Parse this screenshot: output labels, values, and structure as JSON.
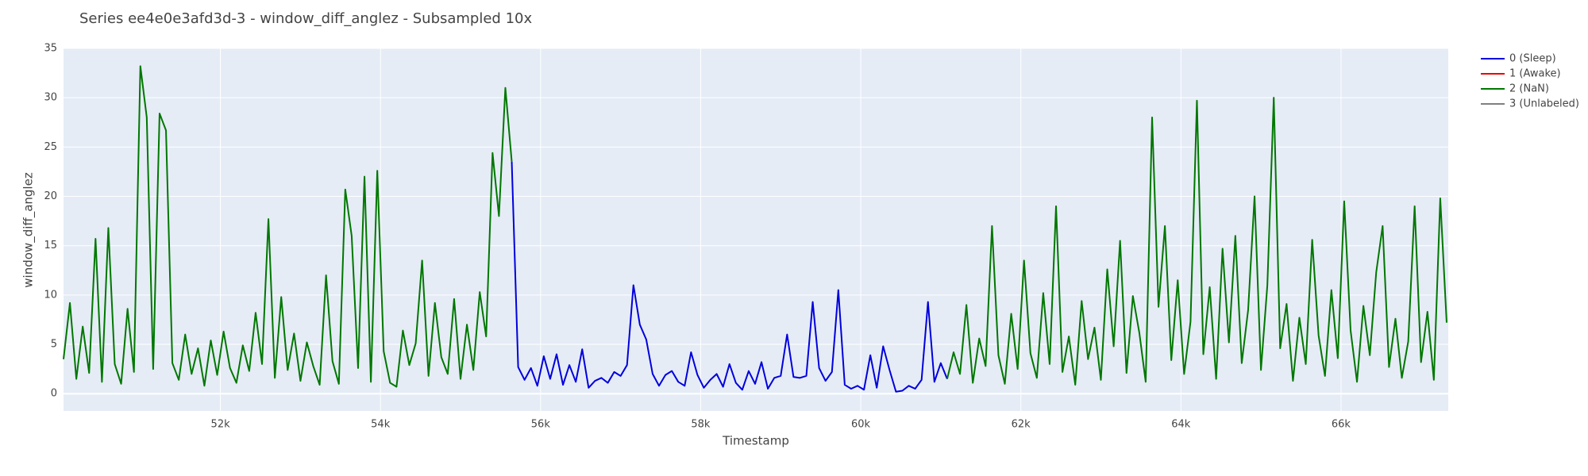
{
  "chart_data": {
    "type": "line",
    "title": "Series ee4e0e3afd3d-3 - window_diff_anglez - Subsampled 10x",
    "x_label": "Timestamp",
    "y_label": "window_diff_anglez",
    "xlim": [
      50040,
      67340
    ],
    "ylim": [
      -1.75,
      35
    ],
    "xticks": [
      {
        "value": 52000,
        "label": "52k"
      },
      {
        "value": 54000,
        "label": "54k"
      },
      {
        "value": 56000,
        "label": "56k"
      },
      {
        "value": 58000,
        "label": "58k"
      },
      {
        "value": 60000,
        "label": "60k"
      },
      {
        "value": 62000,
        "label": "62k"
      },
      {
        "value": 64000,
        "label": "64k"
      },
      {
        "value": 66000,
        "label": "66k"
      }
    ],
    "yticks": [
      0,
      5,
      10,
      15,
      20,
      25,
      30,
      35
    ],
    "grid": true,
    "legend": "right",
    "x": [
      50040,
      50120,
      50200,
      50280,
      50360,
      50440,
      50520,
      50600,
      50680,
      50760,
      50840,
      50920,
      51000,
      51080,
      51160,
      51240,
      51320,
      51400,
      51480,
      51560,
      51640,
      51720,
      51800,
      51880,
      51960,
      52040,
      52120,
      52200,
      52280,
      52360,
      52440,
      52520,
      52600,
      52680,
      52760,
      52840,
      52920,
      53000,
      53080,
      53160,
      53240,
      53320,
      53400,
      53480,
      53560,
      53640,
      53720,
      53800,
      53880,
      53960,
      54040,
      54120,
      54200,
      54280,
      54360,
      54440,
      54520,
      54600,
      54680,
      54760,
      54840,
      54920,
      55000,
      55080,
      55160,
      55240,
      55320,
      55400,
      55480,
      55560,
      55640,
      55720,
      55800,
      55880,
      55960,
      56040,
      56120,
      56200,
      56280,
      56360,
      56440,
      56520,
      56600,
      56680,
      56760,
      56840,
      56920,
      57000,
      57080,
      57160,
      57240,
      57320,
      57400,
      57480,
      57560,
      57640,
      57720,
      57800,
      57880,
      57960,
      58040,
      58120,
      58200,
      58280,
      58360,
      58440,
      58520,
      58600,
      58680,
      58760,
      58840,
      58920,
      59000,
      59080,
      59160,
      59240,
      59320,
      59400,
      59480,
      59560,
      59640,
      59720,
      59800,
      59880,
      59960,
      60040,
      60120,
      60200,
      60280,
      60360,
      60440,
      60520,
      60600,
      60680,
      60760,
      60840,
      60920,
      61000,
      61080,
      61160,
      61240,
      61320,
      61400,
      61480,
      61560,
      61640,
      61720,
      61800,
      61880,
      61960,
      62040,
      62120,
      62200,
      62280,
      62360,
      62440,
      62520,
      62600,
      62680,
      62760,
      62840,
      62920,
      63000,
      63080,
      63160,
      63240,
      63320,
      63400,
      63480,
      63560,
      63640,
      63720,
      63800,
      63880,
      63960,
      64040,
      64120,
      64200,
      64280,
      64360,
      64440,
      64520,
      64600,
      64680,
      64760,
      64840,
      64920,
      65000,
      65080,
      65160,
      65240,
      65320,
      65400,
      65480,
      65560,
      65640,
      65720,
      65800,
      65880,
      65960,
      66040,
      66120,
      66200,
      66280,
      66360,
      66440,
      66520,
      66600,
      66680,
      66760,
      66840,
      66920,
      67000,
      67080,
      67160,
      67240,
      67320
    ],
    "series": [
      {
        "name": "0 (Sleep)",
        "color": "#0000dd",
        "values": [
          null,
          null,
          null,
          null,
          null,
          null,
          null,
          null,
          null,
          null,
          null,
          null,
          null,
          null,
          null,
          null,
          null,
          null,
          null,
          null,
          null,
          null,
          null,
          null,
          null,
          null,
          null,
          null,
          null,
          null,
          null,
          null,
          null,
          null,
          null,
          null,
          null,
          null,
          null,
          null,
          null,
          null,
          null,
          null,
          null,
          null,
          null,
          null,
          null,
          null,
          null,
          null,
          null,
          null,
          null,
          null,
          null,
          null,
          null,
          null,
          null,
          null,
          null,
          null,
          null,
          null,
          null,
          null,
          null,
          null,
          23.5,
          2.7,
          1.4,
          2.6,
          0.8,
          3.8,
          1.5,
          4.0,
          0.9,
          2.9,
          1.2,
          4.5,
          0.6,
          1.3,
          1.6,
          1.1,
          2.2,
          1.8,
          2.9,
          11.0,
          7.0,
          5.5,
          2.0,
          0.8,
          1.9,
          2.3,
          1.2,
          0.8,
          4.2,
          1.9,
          0.6,
          1.4,
          2.0,
          0.7,
          3.0,
          1.1,
          0.4,
          2.3,
          1.0,
          3.2,
          0.5,
          1.6,
          1.8,
          6.0,
          1.7,
          1.6,
          1.8,
          9.3,
          2.6,
          1.3,
          2.2,
          10.5,
          0.9,
          0.5,
          0.8,
          0.4,
          3.9,
          0.6,
          4.8,
          2.4,
          0.2,
          0.3,
          0.8,
          0.5,
          1.4,
          9.3,
          1.2,
          3.1,
          1.5,
          null,
          null,
          null,
          null,
          null,
          null,
          null,
          null,
          null,
          null,
          null,
          null,
          null,
          null,
          null,
          null,
          null,
          null,
          null,
          null,
          null,
          null,
          null,
          null,
          null,
          null,
          null,
          null,
          null,
          null,
          null,
          null,
          null,
          null,
          null,
          null,
          null,
          null,
          null,
          null,
          null,
          null,
          null,
          null,
          null,
          null,
          null,
          null,
          null,
          null,
          null,
          null,
          null,
          null,
          null,
          null,
          null,
          null,
          null,
          null,
          null,
          null,
          null,
          null,
          null,
          null,
          null,
          null,
          null,
          null,
          null,
          null,
          null,
          null,
          null,
          null,
          null,
          null
        ]
      },
      {
        "name": "1 (Awake)",
        "color": "#ee0000",
        "values": [
          null,
          null,
          null,
          null,
          null,
          null,
          null,
          null,
          null,
          null,
          null,
          null,
          null,
          null,
          null,
          null,
          null,
          null,
          null,
          null,
          null,
          null,
          null,
          null,
          null,
          null,
          null,
          null,
          null,
          null,
          null,
          null,
          null,
          null,
          null,
          null,
          null,
          null,
          null,
          null,
          null,
          null,
          null,
          null,
          null,
          null,
          null,
          null,
          null,
          null,
          null,
          null,
          null,
          null,
          null,
          null,
          null,
          null,
          null,
          null,
          null,
          null,
          null,
          null,
          null,
          null,
          null,
          null,
          null,
          null,
          null,
          null,
          null,
          null,
          null,
          null,
          null,
          null,
          null,
          null,
          null,
          null,
          null,
          null,
          null,
          null,
          null,
          null,
          null,
          null,
          null,
          null,
          null,
          null,
          null,
          null,
          null,
          null,
          null,
          null,
          null,
          null,
          null,
          null,
          null,
          null,
          null,
          null,
          null,
          null,
          null,
          null,
          null,
          null,
          null,
          null,
          null,
          null,
          null,
          null,
          null,
          null,
          null,
          null,
          null,
          null,
          null,
          null,
          null,
          null,
          null,
          null,
          null,
          null,
          null,
          null,
          null,
          null,
          null,
          null,
          null,
          null,
          null,
          null,
          null,
          null,
          null,
          null,
          null,
          null,
          null,
          null,
          null,
          null,
          null,
          null,
          null,
          null,
          null,
          null,
          null,
          null,
          null,
          null,
          null,
          null,
          null,
          null,
          null,
          null,
          null,
          null,
          null,
          null,
          null,
          null,
          null,
          null,
          null,
          null,
          null,
          null,
          null,
          null,
          null,
          null,
          null,
          null,
          null,
          null,
          null,
          null,
          null,
          null,
          null,
          null,
          null,
          null,
          null,
          null,
          null,
          null,
          null,
          null,
          null,
          null,
          null,
          null,
          null,
          null,
          null,
          null,
          null,
          null,
          null,
          null,
          null
        ]
      },
      {
        "name": "2 (NaN)",
        "color": "#007700",
        "values": [
          3.5,
          9.2,
          1.5,
          6.8,
          2.1,
          15.7,
          1.2,
          16.8,
          3.0,
          1.0,
          8.6,
          2.2,
          33.2,
          28.0,
          2.5,
          28.4,
          26.7,
          3.1,
          1.4,
          6.0,
          2.0,
          4.6,
          0.8,
          5.4,
          1.9,
          6.3,
          2.6,
          1.1,
          4.9,
          2.3,
          8.2,
          3.0,
          17.7,
          1.6,
          9.8,
          2.4,
          6.1,
          1.3,
          5.2,
          2.8,
          0.9,
          12.0,
          3.3,
          1.0,
          20.7,
          16.0,
          2.6,
          22.0,
          1.2,
          22.6,
          4.3,
          1.1,
          0.7,
          6.4,
          2.9,
          5.1,
          13.5,
          1.8,
          9.2,
          3.7,
          2.0,
          9.6,
          1.5,
          7.0,
          2.4,
          10.3,
          5.8,
          24.4,
          18.0,
          31.0,
          23.5,
          null,
          null,
          null,
          null,
          null,
          null,
          null,
          null,
          null,
          null,
          null,
          null,
          null,
          null,
          null,
          null,
          null,
          null,
          null,
          null,
          null,
          null,
          null,
          null,
          null,
          null,
          null,
          null,
          null,
          null,
          null,
          null,
          null,
          null,
          null,
          null,
          null,
          null,
          null,
          null,
          null,
          null,
          null,
          null,
          null,
          null,
          null,
          null,
          null,
          null,
          null,
          null,
          null,
          null,
          null,
          null,
          null,
          null,
          null,
          null,
          null,
          null,
          null,
          null,
          null,
          null,
          null,
          1.5,
          4.2,
          2.0,
          9.0,
          1.1,
          5.6,
          2.8,
          17.0,
          3.9,
          1.0,
          8.1,
          2.5,
          13.5,
          4.1,
          1.6,
          10.2,
          3.0,
          19.0,
          2.2,
          5.8,
          0.9,
          9.4,
          3.5,
          6.7,
          1.4,
          12.6,
          4.8,
          15.5,
          2.1,
          9.9,
          6.2,
          1.2,
          28.0,
          8.8,
          17.0,
          3.4,
          11.5,
          2.0,
          7.3,
          29.7,
          4.0,
          10.8,
          1.5,
          14.7,
          5.2,
          16.0,
          3.1,
          8.5,
          20.0,
          2.4,
          11.0,
          30.0,
          4.6,
          9.1,
          1.3,
          7.7,
          3.0,
          15.6,
          5.9,
          1.8,
          10.5,
          3.6,
          19.5,
          6.4,
          1.2,
          8.9,
          3.9,
          12.3,
          17.0,
          2.7,
          7.6,
          1.6,
          5.3,
          19.0,
          3.2,
          8.3,
          1.4,
          19.8,
          7.2
        ]
      },
      {
        "name": "3 (Unlabeled)",
        "color": "#808080",
        "values": [
          null,
          null,
          null,
          null,
          null,
          null,
          null,
          null,
          null,
          null,
          null,
          null,
          null,
          null,
          null,
          null,
          null,
          null,
          null,
          null,
          null,
          null,
          null,
          null,
          null,
          null,
          null,
          null,
          null,
          null,
          null,
          null,
          null,
          null,
          null,
          null,
          null,
          null,
          null,
          null,
          null,
          null,
          null,
          null,
          null,
          null,
          null,
          null,
          null,
          null,
          null,
          null,
          null,
          null,
          null,
          null,
          null,
          null,
          null,
          null,
          null,
          null,
          null,
          null,
          null,
          null,
          null,
          null,
          null,
          null,
          null,
          null,
          null,
          null,
          null,
          null,
          null,
          null,
          null,
          null,
          null,
          null,
          null,
          null,
          null,
          null,
          null,
          null,
          null,
          null,
          null,
          null,
          null,
          null,
          null,
          null,
          null,
          null,
          null,
          null,
          null,
          null,
          null,
          null,
          null,
          null,
          null,
          null,
          null,
          null,
          null,
          null,
          null,
          null,
          null,
          null,
          null,
          null,
          null,
          null,
          null,
          null,
          null,
          null,
          null,
          null,
          null,
          null,
          null,
          null,
          null,
          null,
          null,
          null,
          null,
          null,
          null,
          null,
          null,
          null,
          null,
          null,
          null,
          null,
          null,
          null,
          null,
          null,
          null,
          null,
          null,
          null,
          null,
          null,
          null,
          null,
          null,
          null,
          null,
          null,
          null,
          null,
          null,
          null,
          null,
          null,
          null,
          null,
          null,
          null,
          null,
          null,
          null,
          null,
          null,
          null,
          null,
          null,
          null,
          null,
          null,
          null,
          null,
          null,
          null,
          null,
          null,
          null,
          null,
          null,
          null,
          null,
          null,
          null,
          null,
          null,
          null,
          null,
          null,
          null,
          null,
          null,
          null,
          null,
          null,
          null,
          null,
          null,
          null,
          null,
          null,
          null,
          null,
          null,
          null,
          null,
          null
        ]
      }
    ]
  }
}
